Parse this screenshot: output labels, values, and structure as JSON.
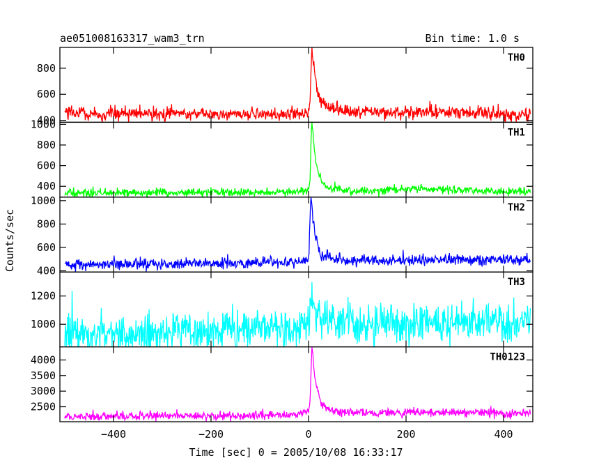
{
  "header": {
    "title": "ae051008163317_wam3_trn",
    "bin_time": "Bin time: 1.0 s"
  },
  "chart_data": {
    "type": "line",
    "title": "ae051008163317_wam3_trn",
    "xlabel": "Time [sec] 0 = 2005/10/08 16:33:17",
    "ylabel": "Counts/sec",
    "xlim": [
      -510,
      460
    ],
    "xticks": [
      -400,
      -200,
      0,
      200,
      400
    ],
    "xtick_labels": [
      "−400",
      "−200",
      "0",
      "200",
      "400"
    ],
    "bin_time_s": 1.0,
    "grid": false,
    "legend": "panel labels top-right",
    "series": [
      {
        "name": "TH0",
        "color": "#ff0000",
        "ylim": [
          385,
          960
        ],
        "yticks": [
          400,
          600,
          800
        ],
        "ytick_labels": [
          "400",
          "600",
          "800"
        ],
        "shape": {
          "base_start": 455,
          "base_end": 440,
          "noise": 26,
          "bump": {
            "x": 250,
            "amp": 20,
            "w": 150
          },
          "peak": 420,
          "peak_x": 7,
          "rise": 3,
          "decay": 9,
          "tail": {
            "amp": 90,
            "tau": 45
          },
          "pre": {
            "amp": 35,
            "tau": 22
          }
        }
      },
      {
        "name": "TH1",
        "color": "#00ff00",
        "ylim": [
          295,
          1020
        ],
        "yticks": [
          400,
          600,
          800,
          1000
        ],
        "ytick_labels": [
          "400",
          "600",
          "800",
          "1000"
        ],
        "shape": {
          "base_start": 335,
          "base_end": 350,
          "noise": 20,
          "bump": {
            "x": 230,
            "amp": 25,
            "w": 110
          },
          "peak": 630,
          "peak_x": 7,
          "rise": 3,
          "decay": 8,
          "tail": {
            "amp": 90,
            "tau": 40
          },
          "pre": {
            "amp": 40,
            "tau": 18
          }
        }
      },
      {
        "name": "TH2",
        "color": "#0000ff",
        "ylim": [
          390,
          1030
        ],
        "yticks": [
          400,
          600,
          800,
          1000
        ],
        "ytick_labels": [
          "400",
          "600",
          "800",
          "1000"
        ],
        "shape": {
          "base_start": 450,
          "base_end": 495,
          "noise": 24,
          "bump": {
            "x": 250,
            "amp": 10,
            "w": 150
          },
          "peak": 520,
          "peak_x": 5,
          "rise": 3,
          "decay": 8,
          "tail": {
            "amp": 70,
            "tau": 35
          },
          "pre": {
            "amp": 35,
            "tau": 18
          }
        }
      },
      {
        "name": "TH3",
        "color": "#00ffff",
        "ylim": [
          840,
          1370
        ],
        "yticks": [
          1000,
          1200
        ],
        "ytick_labels": [
          "1000",
          "1200"
        ],
        "shape": {
          "base_start": 920,
          "base_end": 1000,
          "noise": 70,
          "bump": {
            "x": 150,
            "amp": 30,
            "w": 250
          },
          "peak": 200,
          "peak_x": 7,
          "rise": 3,
          "decay": 6,
          "tail": {
            "amp": 70,
            "tau": 50
          },
          "pre": {
            "amp": 30,
            "tau": 15
          }
        }
      },
      {
        "name": "TH0123",
        "color": "#ff00ff",
        "ylim": [
          2020,
          4420
        ],
        "yticks": [
          2500,
          3000,
          3500,
          4000
        ],
        "ytick_labels": [
          "2500",
          "3000",
          "3500",
          "4000"
        ],
        "shape": {
          "base_start": 2180,
          "base_end": 2290,
          "noise": 70,
          "bump": {
            "x": 230,
            "amp": 60,
            "w": 150
          },
          "peak": 1950,
          "peak_x": 7,
          "rise": 3,
          "decay": 8,
          "tail": {
            "amp": 350,
            "tau": 40
          },
          "pre": {
            "amp": 150,
            "tau": 18
          }
        }
      }
    ]
  }
}
